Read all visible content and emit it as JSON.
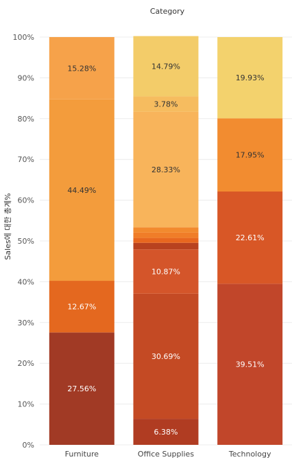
{
  "chart_data": {
    "type": "bar",
    "stacked": true,
    "title": "Category",
    "ylabel": "Sales에 대한 총계%",
    "ylim": [
      0,
      100
    ],
    "yticks": [
      "0%",
      "10%",
      "20%",
      "30%",
      "40%",
      "50%",
      "60%",
      "70%",
      "80%",
      "90%",
      "100%"
    ],
    "grid": true,
    "categories": [
      "Furniture",
      "Office Supplies",
      "Technology"
    ],
    "columns": [
      {
        "category": "Furniture",
        "segments": [
          {
            "value": 27.56,
            "label": "27.56%",
            "color": "#a13a25"
          },
          {
            "value": 12.67,
            "label": "12.67%",
            "color": "#e4681f"
          },
          {
            "value": 44.49,
            "label": "44.49%",
            "color": "#f39c3c"
          },
          {
            "value": 15.28,
            "label": "15.28%",
            "color": "#f6a24a"
          }
        ]
      },
      {
        "category": "Office Supplies",
        "segments": [
          {
            "value": 6.38,
            "label": "6.38%",
            "color": "#b03c22"
          },
          {
            "value": 30.69,
            "label": "30.69%",
            "color": "#c44a24"
          },
          {
            "value": 10.87,
            "label": "10.87%",
            "color": "#d4552a"
          },
          {
            "value": 1.6,
            "label": "",
            "color": "#b8421f"
          },
          {
            "value": 1.2,
            "label": "",
            "color": "#e8671f"
          },
          {
            "value": 1.3,
            "label": "",
            "color": "#f07d28"
          },
          {
            "value": 1.3,
            "label": "",
            "color": "#f28a2e"
          },
          {
            "value": 28.33,
            "label": "28.33%",
            "color": "#f8b45b"
          },
          {
            "value": 3.78,
            "label": "3.78%",
            "color": "#f6bc5f"
          },
          {
            "value": 14.79,
            "label": "14.79%",
            "color": "#f3cc69"
          }
        ]
      },
      {
        "category": "Technology",
        "segments": [
          {
            "value": 39.51,
            "label": "39.51%",
            "color": "#c1462a"
          },
          {
            "value": 22.61,
            "label": "22.61%",
            "color": "#d85726"
          },
          {
            "value": 17.95,
            "label": "17.95%",
            "color": "#f28c30"
          },
          {
            "value": 19.93,
            "label": "19.93%",
            "color": "#f3d26d"
          }
        ]
      }
    ]
  }
}
